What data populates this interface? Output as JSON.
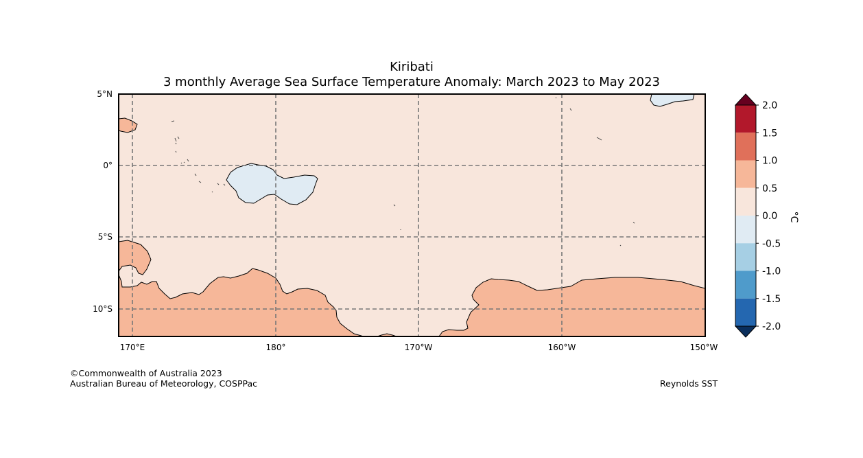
{
  "title": "Kiribati",
  "subtitle": "3 monthly Average Sea Surface Temperature Anomaly: March 2023 to May 2023",
  "lat_labels": [
    "5°N",
    "0°",
    "5°S",
    "10°S"
  ],
  "lon_labels": [
    "170°E",
    "180°",
    "170°W",
    "160°W",
    "150°W"
  ],
  "colorbar": {
    "unit": "°C",
    "ticks": [
      "2.0",
      "1.5",
      "1.0",
      "0.5",
      "0.0",
      "-0.5",
      "-1.0",
      "-1.5",
      "-2.0"
    ],
    "colors": {
      "above_2_0": "#67001f",
      "1_5_to_2_0": "#b2182b",
      "1_0_to_1_5": "#e0705a",
      "0_5_to_1_0": "#f6b799",
      "0_0_to_0_5": "#f8e6dc",
      "m0_5_to_0_0": "#e0ebf3",
      "m1_0_to_m0_5": "#a6cfe4",
      "m1_5_to_m1_0": "#4f9bcb",
      "m2_0_to_m1_5": "#2467b0",
      "below_m2_0": "#0a2e5c"
    }
  },
  "footer": {
    "copyright": "©Commonwealth of Australia 2023",
    "agency": "Australian Bureau of Meteorology, COSPPac",
    "source": "Reynolds SST"
  }
}
